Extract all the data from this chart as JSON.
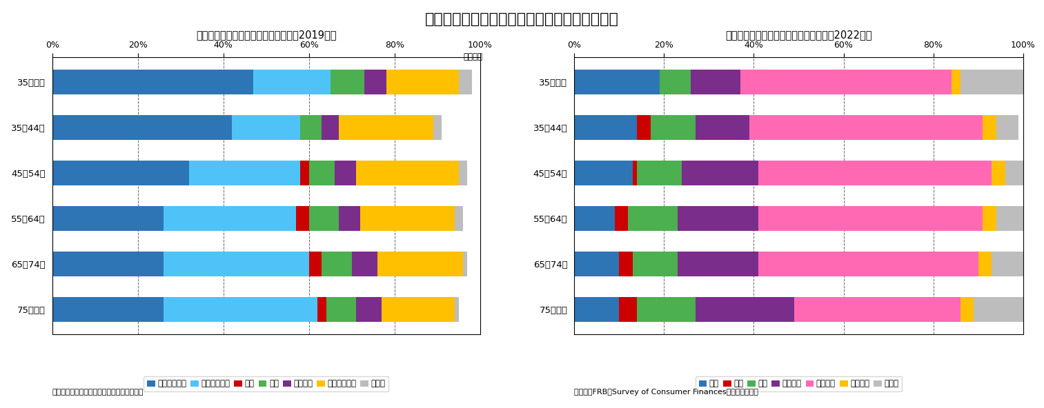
{
  "title": "（図表５）日米における年齢階級別金融資産額",
  "title_fontsize": 16,
  "left_title": "日本における年齢階級別金融資産額（2019年）",
  "left_unit": "（万円）",
  "left_source": "（資料）総務省統計局「全国家計構造調査」",
  "left_categories": [
    "35歳未満",
    "35～44歳",
    "45～54歳",
    "55～64歳",
    "65～74歳",
    "75歳以上"
  ],
  "left_series_labels": [
    "通貨性預貯金",
    "定期性預貯金",
    "債券",
    "株式",
    "投資信託",
    "生命保険など",
    "その他"
  ],
  "left_colors": [
    "#2E75B6",
    "#4FC3F7",
    "#CC0000",
    "#4CAF50",
    "#7B2D8B",
    "#FFC000",
    "#BDBDBD"
  ],
  "left_data": [
    [
      47,
      18,
      0,
      8,
      5,
      17,
      3
    ],
    [
      42,
      16,
      0,
      5,
      4,
      22,
      2
    ],
    [
      32,
      26,
      2,
      6,
      5,
      24,
      2
    ],
    [
      26,
      31,
      3,
      7,
      5,
      22,
      2
    ],
    [
      26,
      34,
      3,
      7,
      6,
      20,
      1
    ],
    [
      26,
      36,
      2,
      7,
      6,
      17,
      1
    ]
  ],
  "right_title": "米国における年齢階級別金融資産割合（2022年）",
  "right_source": "（資料）FRB「Survey of Consumer Finances」より筆者作成",
  "right_categories": [
    "35歳未満",
    "35～44歳",
    "45～54歳",
    "55～64歳",
    "65～74歳",
    "75歳以上"
  ],
  "right_series_labels": [
    "預金",
    "債券",
    "株式",
    "投資信託",
    "退職口座",
    "生命保険",
    "その他"
  ],
  "right_colors": [
    "#2E75B6",
    "#CC0000",
    "#4CAF50",
    "#7B2D8B",
    "#FF69B4",
    "#FFC000",
    "#BDBDBD"
  ],
  "right_data": [
    [
      19,
      0,
      7,
      11,
      47,
      2,
      14
    ],
    [
      14,
      3,
      10,
      12,
      52,
      3,
      5
    ],
    [
      13,
      1,
      10,
      17,
      52,
      3,
      5
    ],
    [
      9,
      3,
      11,
      18,
      50,
      3,
      6
    ],
    [
      10,
      3,
      10,
      18,
      49,
      3,
      7
    ],
    [
      10,
      4,
      13,
      22,
      37,
      3,
      11
    ]
  ]
}
